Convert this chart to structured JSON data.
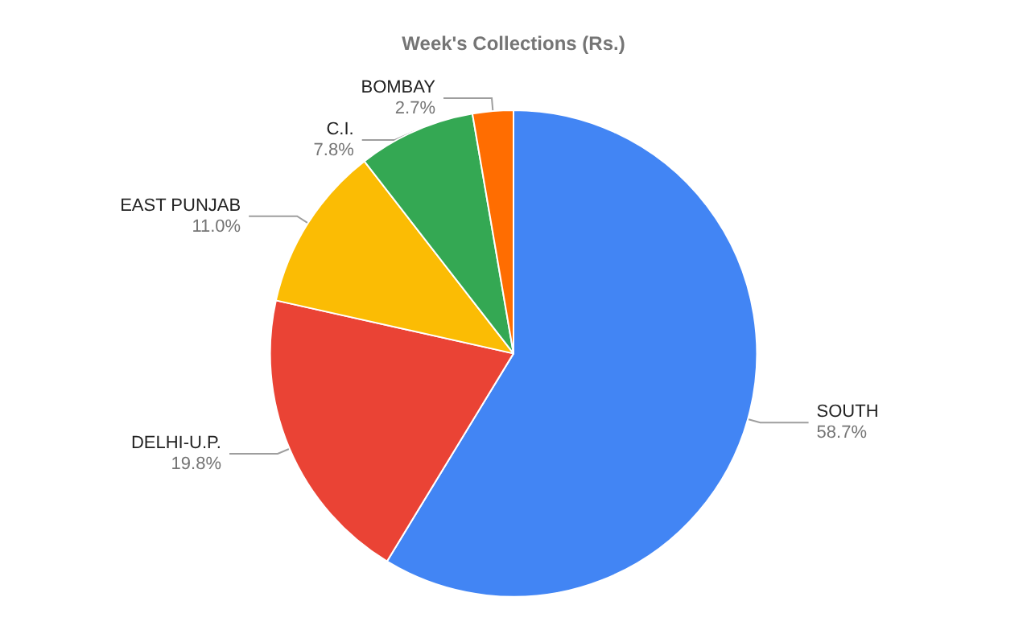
{
  "chart_data": {
    "type": "pie",
    "title": "Week's Collections (Rs.)",
    "categories": [
      "SOUTH",
      "DELHI-U.P.",
      "EAST PUNJAB",
      "C.I.",
      "BOMBAY"
    ],
    "values": [
      58.7,
      19.8,
      11.0,
      7.8,
      2.7
    ],
    "value_labels": [
      "58.7%",
      "19.8%",
      "11.0%",
      "7.8%",
      "2.7%"
    ],
    "colors": [
      "#4285f4",
      "#ea4335",
      "#fbbc04",
      "#34a853",
      "#ff6d01"
    ],
    "legend": false
  }
}
